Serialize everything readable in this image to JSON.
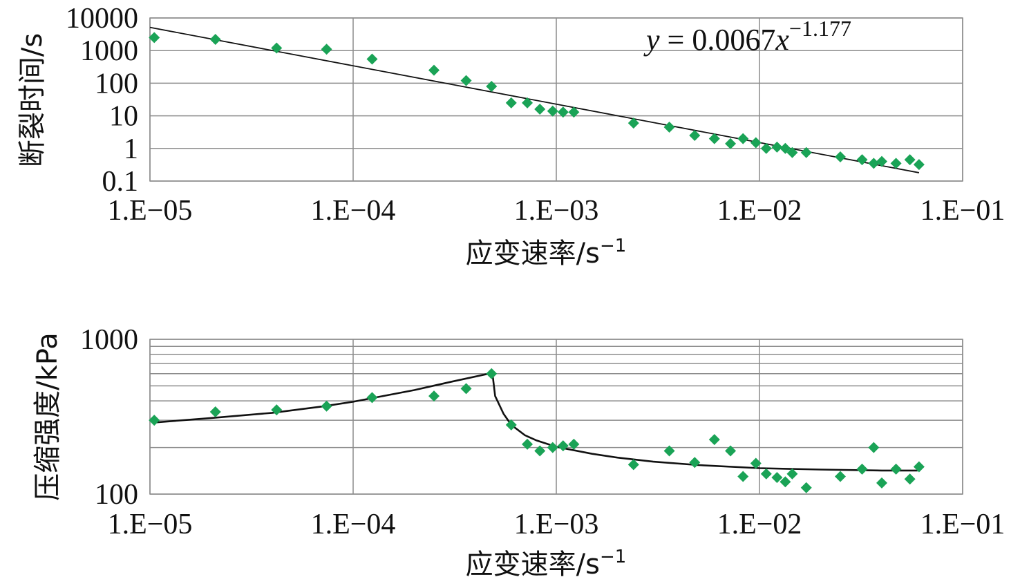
{
  "chart_data": [
    {
      "type": "scatter",
      "xlabel": "应变速率/s",
      "xlabel_sup": "−1",
      "ylabel": "断裂时间/s",
      "x_scale": "log",
      "y_scale": "log",
      "xlim": [
        1e-05,
        0.1
      ],
      "ylim": [
        0.1,
        10000
      ],
      "x_tick_labels": [
        "1.E−05",
        "1.E−04",
        "1.E−03",
        "1.E−02",
        "1.E−01"
      ],
      "y_tick_labels": [
        "0.1",
        "1",
        "10",
        "100",
        "1000",
        "10000"
      ],
      "grid": true,
      "marker_color": "#1aa356",
      "annotation": {
        "y_var": "y",
        "eq_mid": " = 0.0067",
        "x_var": "x",
        "eq_exp": "−1.177"
      },
      "fit": {
        "kind": "power",
        "coef": 0.0067,
        "exponent": -1.177,
        "x_range": [
          1e-05,
          0.061
        ]
      },
      "series": [
        {
          "x": [
            1.05e-05,
            2.1e-05,
            4.2e-05,
            7.4e-05,
            0.000124,
            0.00025,
            0.00036,
            0.00048,
            0.0006,
            0.00072,
            0.00083,
            0.00096,
            0.00108,
            0.00122,
            0.0024,
            0.0036,
            0.0048,
            0.006,
            0.0072,
            0.0083,
            0.0096,
            0.0108,
            0.0122,
            0.0134,
            0.0145,
            0.017,
            0.025,
            0.032,
            0.0365,
            0.04,
            0.047,
            0.055,
            0.061
          ],
          "y": [
            2500,
            2200,
            1200,
            1100,
            550,
            250,
            120,
            80,
            25,
            25,
            16,
            14,
            13,
            13,
            6,
            4.5,
            2.5,
            2,
            1.4,
            2,
            1.5,
            1,
            1.1,
            1,
            0.75,
            0.75,
            0.55,
            0.45,
            0.35,
            0.4,
            0.35,
            0.45,
            0.32
          ]
        }
      ]
    },
    {
      "type": "scatter",
      "xlabel": "应变速率/s",
      "xlabel_sup": "−1",
      "ylabel": "压缩强度/kPa",
      "x_scale": "log",
      "y_scale": "log",
      "xlim": [
        1e-05,
        0.1
      ],
      "ylim": [
        100,
        1000
      ],
      "x_tick_labels": [
        "1.E−05",
        "1.E−04",
        "1.E−03",
        "1.E−02",
        "1.E−01"
      ],
      "y_tick_labels": [
        "100",
        "1000"
      ],
      "grid": true,
      "marker_color": "#1aa356",
      "fit_curve": {
        "x": [
          1.05e-05,
          2e-05,
          4e-05,
          7e-05,
          0.0001,
          0.0002,
          0.0003,
          0.00048,
          0.000485,
          0.0005,
          0.00055,
          0.0006,
          0.0007,
          0.0008,
          0.001,
          0.0015,
          0.002,
          0.003,
          0.005,
          0.01,
          0.02,
          0.04,
          0.06
        ],
        "y": [
          290,
          310,
          335,
          368,
          395,
          470,
          530,
          605,
          600,
          430,
          330,
          280,
          240,
          222,
          202,
          182,
          172,
          162,
          154,
          147,
          144,
          142,
          142
        ]
      },
      "series": [
        {
          "x": [
            1.05e-05,
            2.1e-05,
            4.2e-05,
            7.4e-05,
            0.000124,
            0.00025,
            0.00036,
            0.00048,
            0.0006,
            0.00072,
            0.00083,
            0.00096,
            0.00108,
            0.00122,
            0.0024,
            0.0036,
            0.0048,
            0.006,
            0.0072,
            0.0083,
            0.0096,
            0.0108,
            0.0122,
            0.0134,
            0.0145,
            0.017,
            0.025,
            0.032,
            0.0365,
            0.04,
            0.047,
            0.055,
            0.061
          ],
          "y": [
            300,
            340,
            350,
            370,
            420,
            430,
            480,
            600,
            280,
            210,
            190,
            200,
            205,
            210,
            155,
            190,
            160,
            225,
            190,
            130,
            158,
            135,
            128,
            120,
            135,
            110,
            130,
            145,
            200,
            118,
            145,
            125,
            150
          ]
        }
      ]
    }
  ]
}
